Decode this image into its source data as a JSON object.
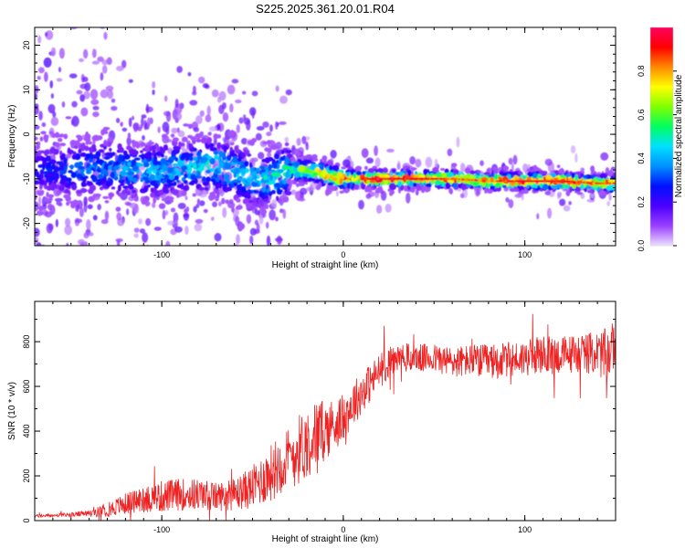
{
  "title": "S225.2025.361.20.01.R04",
  "chart_data": [
    {
      "type": "heatmap",
      "xlabel": "Height of straight line (km)",
      "ylabel": "Frequency (Hz)",
      "xlim": [
        -170,
        150
      ],
      "ylim": [
        -25,
        24
      ],
      "x_ticks": [
        -100,
        0,
        100
      ],
      "y_ticks": [
        -20,
        -10,
        0,
        10,
        20
      ],
      "colorbar": {
        "label": "Normalized spectral amplitude",
        "range": [
          0,
          1
        ],
        "ticks": [
          "0.0",
          "0.2",
          "0.4",
          "0.6",
          "0.8"
        ],
        "colors": [
          "#ece0ff",
          "#9a40ff",
          "#4c00ff",
          "#0010ff",
          "#0090ff",
          "#00e0ff",
          "#00ff60",
          "#80ff00",
          "#ffff00",
          "#ff8800",
          "#ff0000",
          "#ff0060"
        ]
      },
      "ridge": {
        "x": [
          -170,
          -150,
          -130,
          -110,
          -90,
          -70,
          -50,
          -40,
          -30,
          -20,
          -10,
          0,
          10,
          20,
          40,
          60,
          80,
          100,
          120,
          140,
          150
        ],
        "freq": [
          -8,
          -8,
          -7.5,
          -8.5,
          -7.5,
          -7,
          -10,
          -10,
          -8,
          -8,
          -9,
          -10,
          -10,
          -10,
          -10,
          -10,
          -10.5,
          -10.5,
          -10.5,
          -11,
          -11
        ],
        "peak_amplitude": [
          0.25,
          0.35,
          0.4,
          0.45,
          0.45,
          0.5,
          0.45,
          0.5,
          0.55,
          0.75,
          0.85,
          0.95,
          0.95,
          1,
          1,
          0.9,
          0.9,
          1,
          1,
          0.9,
          0.9
        ]
      }
    },
    {
      "type": "line",
      "xlabel": "Height of straight line (km)",
      "ylabel": "SNR (10 * v/v)",
      "xlim": [
        -170,
        150
      ],
      "ylim": [
        0,
        980
      ],
      "x_ticks": [
        -100,
        0,
        100
      ],
      "y_ticks": [
        0,
        200,
        400,
        600,
        800
      ],
      "series": [
        {
          "color": "#ee2222",
          "x": [
            -170,
            -160,
            -150,
            -140,
            -130,
            -120,
            -110,
            -100,
            -90,
            -80,
            -70,
            -60,
            -50,
            -45,
            -40,
            -35,
            -30,
            -25,
            -20,
            -15,
            -10,
            -5,
            0,
            5,
            10,
            15,
            20,
            25,
            30,
            40,
            50,
            60,
            70,
            80,
            90,
            100,
            110,
            120,
            130,
            140,
            145,
            148,
            150
          ],
          "values": [
            20,
            22,
            25,
            30,
            45,
            70,
            90,
            100,
            110,
            110,
            100,
            110,
            140,
            170,
            200,
            240,
            260,
            300,
            330,
            370,
            390,
            420,
            450,
            510,
            560,
            610,
            660,
            700,
            720,
            720,
            720,
            700,
            710,
            700,
            710,
            720,
            730,
            730,
            740,
            740,
            720,
            760,
            790
          ],
          "noise_band": [
            8,
            10,
            12,
            18,
            40,
            60,
            80,
            90,
            90,
            90,
            80,
            90,
            120,
            140,
            160,
            170,
            180,
            200,
            200,
            190,
            170,
            150,
            130,
            130,
            120,
            110,
            100,
            90,
            80,
            80,
            80,
            90,
            90,
            100,
            100,
            100,
            110,
            110,
            110,
            120,
            160,
            140,
            130
          ]
        }
      ]
    }
  ]
}
